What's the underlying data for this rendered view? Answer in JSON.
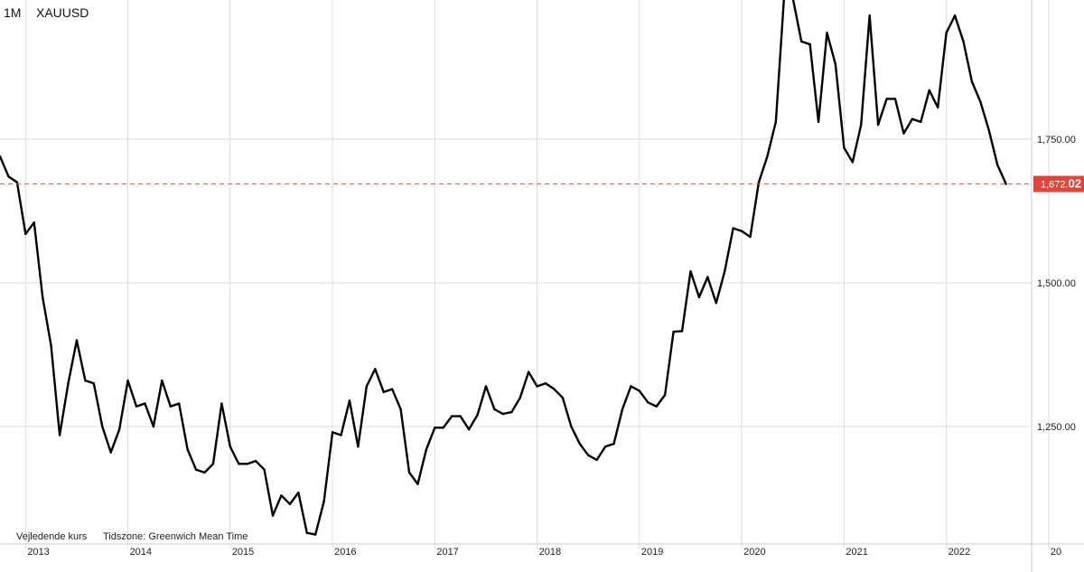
{
  "header": {
    "interval": "1M",
    "symbol": "XAUUSD"
  },
  "footer": {
    "price_note": "Vejledende kurs",
    "timezone": "Tidszone: Greenwich Mean Time"
  },
  "colors": {
    "line": "#000000",
    "grid": "#dddddd",
    "price_line": "#d9534f",
    "price_tag_bg": "#e0453c",
    "price_tag_text": "#ffffff"
  },
  "chart_data": {
    "type": "line",
    "xlabel": "",
    "ylabel": "",
    "ylim": [
      1050,
      2075
    ],
    "xlim": [
      "2012-10",
      "2022-11"
    ],
    "y_ticks": [
      1250,
      1500,
      1750
    ],
    "y_tick_labels": [
      "1,250.00",
      "1,500.00",
      "1,750.00"
    ],
    "x_ticks": [
      "2013-01",
      "2014-01",
      "2015-01",
      "2016-01",
      "2017-01",
      "2018-01",
      "2019-01",
      "2020-01",
      "2021-01",
      "2022-01",
      "2023-01"
    ],
    "x_tick_labels": [
      "2013",
      "2014",
      "2015",
      "2016",
      "2017",
      "2018",
      "2019",
      "2020",
      "2021",
      "2022",
      "20"
    ],
    "current_price": {
      "label_main": "1,672.",
      "label_tail": "02",
      "value": 1672.02
    },
    "grid": true,
    "series": [
      {
        "x": [
          "2012-10",
          "2012-11",
          "2012-12",
          "2013-01",
          "2013-02",
          "2013-03",
          "2013-04",
          "2013-05",
          "2013-06",
          "2013-07",
          "2013-08",
          "2013-09",
          "2013-10",
          "2013-11",
          "2013-12",
          "2014-01",
          "2014-02",
          "2014-03",
          "2014-04",
          "2014-05",
          "2014-06",
          "2014-07",
          "2014-08",
          "2014-09",
          "2014-10",
          "2014-11",
          "2014-12",
          "2015-01",
          "2015-02",
          "2015-03",
          "2015-04",
          "2015-05",
          "2015-06",
          "2015-07",
          "2015-08",
          "2015-09",
          "2015-10",
          "2015-11",
          "2015-12",
          "2016-01",
          "2016-02",
          "2016-03",
          "2016-04",
          "2016-05",
          "2016-06",
          "2016-07",
          "2016-08",
          "2016-09",
          "2016-10",
          "2016-11",
          "2016-12",
          "2017-01",
          "2017-02",
          "2017-03",
          "2017-04",
          "2017-05",
          "2017-06",
          "2017-07",
          "2017-08",
          "2017-09",
          "2017-10",
          "2017-11",
          "2017-12",
          "2018-01",
          "2018-02",
          "2018-03",
          "2018-04",
          "2018-05",
          "2018-06",
          "2018-07",
          "2018-08",
          "2018-09",
          "2018-10",
          "2018-11",
          "2018-12",
          "2019-01",
          "2019-02",
          "2019-03",
          "2019-04",
          "2019-05",
          "2019-06",
          "2019-07",
          "2019-08",
          "2019-09",
          "2019-10",
          "2019-11",
          "2019-12",
          "2020-01",
          "2020-02",
          "2020-03",
          "2020-04",
          "2020-05",
          "2020-06",
          "2020-07",
          "2020-08",
          "2020-09",
          "2020-10",
          "2020-11",
          "2020-12",
          "2021-01",
          "2021-02",
          "2021-03",
          "2021-04",
          "2021-05",
          "2021-06",
          "2021-07",
          "2021-08",
          "2021-09",
          "2021-10",
          "2021-11",
          "2021-12",
          "2022-01",
          "2022-02",
          "2022-03",
          "2022-04",
          "2022-05",
          "2022-06",
          "2022-07",
          "2022-08"
        ],
        "values": [
          1720,
          1685,
          1675,
          1585,
          1605,
          1475,
          1390,
          1235,
          1325,
          1400,
          1330,
          1325,
          1250,
          1205,
          1245,
          1330,
          1285,
          1290,
          1250,
          1330,
          1285,
          1290,
          1210,
          1175,
          1170,
          1185,
          1290,
          1215,
          1185,
          1185,
          1190,
          1175,
          1095,
          1130,
          1115,
          1135,
          1065,
          1062,
          1120,
          1240,
          1235,
          1295,
          1215,
          1320,
          1350,
          1310,
          1315,
          1280,
          1170,
          1150,
          1210,
          1248,
          1248,
          1268,
          1268,
          1245,
          1270,
          1320,
          1280,
          1272,
          1275,
          1300,
          1345,
          1320,
          1325,
          1315,
          1300,
          1250,
          1220,
          1200,
          1192,
          1215,
          1220,
          1280,
          1320,
          1312,
          1292,
          1285,
          1305,
          1415,
          1416,
          1520,
          1475,
          1510,
          1465,
          1520,
          1595,
          1590,
          1580,
          1675,
          1720,
          1780,
          2005,
          1995,
          1920,
          1915,
          1780,
          1935,
          1880,
          1735,
          1710,
          1775,
          1965,
          1775,
          1820,
          1820,
          1760,
          1785,
          1780,
          1835,
          1805,
          1935,
          1965,
          1920,
          1850,
          1815,
          1765,
          1705,
          1672.02
        ]
      }
    ]
  }
}
